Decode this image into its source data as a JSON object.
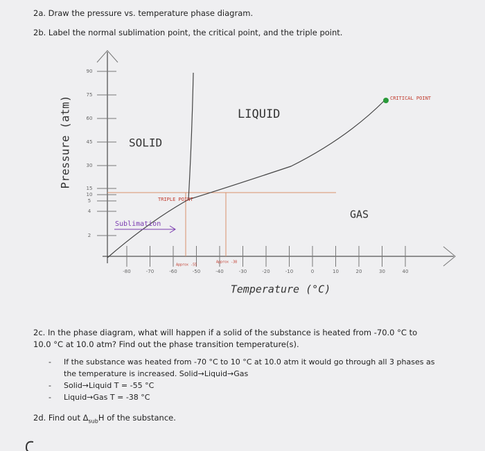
{
  "questions": {
    "q2a": "2a. Draw the pressure vs. temperature phase diagram.",
    "q2b": "2b. Label the normal sublimation point, the critical point, and the triple point.",
    "q2c": "2c. In the phase diagram, what will happen if a solid of the substance is heated from -70.0 °C to 10.0 °C at 10.0 atm? Find out the phase transition temperature(s).",
    "q2d": {
      "before": "2d. Find out Δ",
      "sub": "sub",
      "after": "H of the substance."
    }
  },
  "answers": [
    "If the substance was heated from -70 °C to 10 °C at 10.0 atm it would go through all 3 phases as the temperature is increased. Solid→Liquid→Gas",
    "Solid→Liquid T = -55 °C",
    "Liquid→Gas T = -38 °C"
  ],
  "diagram": {
    "y_label": "Pressure (atm)",
    "x_label": "Temperature (°C)",
    "y_ticks": [
      "90",
      "75",
      "60",
      "45",
      "30",
      "15",
      "10",
      "5",
      "4",
      "2"
    ],
    "x_ticks": [
      "-80",
      "-70",
      "-60",
      "-50",
      "-40",
      "-30",
      "-20",
      "-10",
      "0",
      "10",
      "20",
      "30",
      "40"
    ],
    "regions": {
      "solid": "SOLID",
      "liquid": "LIQUID",
      "gas": "GAS"
    },
    "triple_point": "TRIPLE POINT",
    "critical_point": "CRITICAL POINT",
    "sublimation": "Sublimation",
    "approx_melt": "Approx -55",
    "approx_boil": "Approx -38"
  }
}
